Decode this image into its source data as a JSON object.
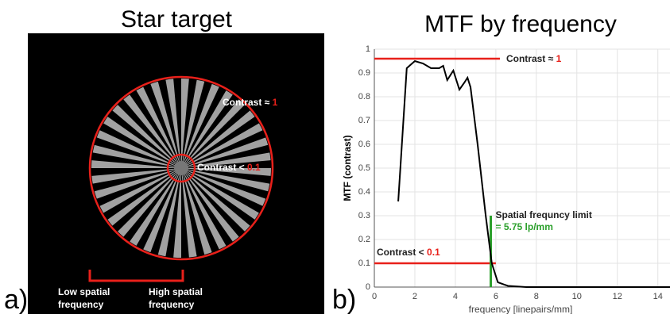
{
  "star_target": {
    "panel_label": "a)",
    "title": "Star target",
    "outer_note": {
      "text": "Contrast ≈ ",
      "highlight": "1"
    },
    "inner_note": {
      "text": "Contrast < ",
      "highlight": "0.1"
    },
    "low_label": [
      "Low spatial",
      "frequency"
    ],
    "high_label": [
      "High spatial",
      "frequency"
    ]
  },
  "chart_data": {
    "type": "line",
    "panel_label": "b)",
    "title": "MTF by frequency",
    "x_label": "frequency [linepairs/mm]",
    "y_label": "MTF (contrast)",
    "xlim": [
      0,
      14.6
    ],
    "ylim": [
      0,
      1
    ],
    "xticks": [
      0,
      2,
      4,
      6,
      8,
      10,
      12,
      14
    ],
    "yticks": [
      0,
      0.1,
      0.2,
      0.3,
      0.4,
      0.5,
      0.6,
      0.7,
      0.8,
      0.9,
      1
    ],
    "grid": true,
    "series": [
      {
        "color": "#000000",
        "x": [
          1.18,
          1.6,
          2.0,
          2.4,
          2.8,
          3.2,
          3.4,
          3.6,
          3.9,
          4.2,
          4.45,
          4.6,
          4.75,
          5.1,
          5.5,
          5.8,
          6.1,
          6.6,
          7.5,
          9,
          11,
          13,
          14.6
        ],
        "values": [
          0.36,
          0.92,
          0.95,
          0.94,
          0.92,
          0.92,
          0.93,
          0.87,
          0.91,
          0.83,
          0.86,
          0.88,
          0.84,
          0.6,
          0.3,
          0.1,
          0.02,
          0.005,
          0,
          0,
          0,
          0,
          0
        ]
      }
    ],
    "reference_lines": [
      {
        "y": 0.96,
        "x_start": 0,
        "x_end": 6.2,
        "color": "#e8201a"
      },
      {
        "y": 0.1,
        "x_start": 0,
        "x_end": 6.0,
        "color": "#e8201a"
      }
    ],
    "limit_line": {
      "x": 5.75,
      "y_top": 0.3,
      "color": "#2ca02c"
    },
    "annotations": [
      {
        "text": "Contrast ≈ ",
        "highlight": "1"
      },
      {
        "text": "Contrast < ",
        "highlight": "0.1"
      }
    ],
    "limit_note": {
      "text": "Spatial frequncy limit",
      "value_text": "= 5.75 lp/mm"
    }
  }
}
